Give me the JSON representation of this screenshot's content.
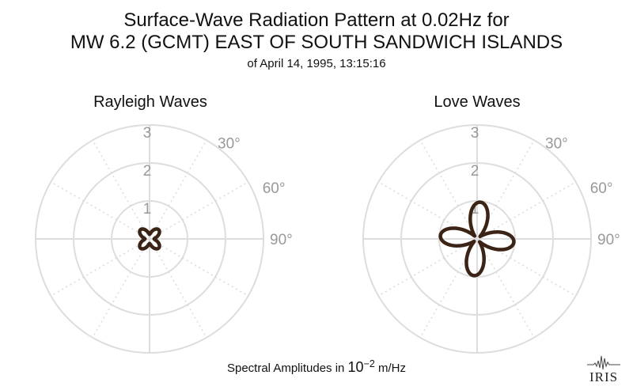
{
  "title_line1": "Surface-Wave Radiation Pattern at 0.02Hz for",
  "title_line2": "MW 6.2 (GCMT) EAST OF SOUTH SANDWICH ISLANDS",
  "subtitle": "of April 14, 1995, 13:15:16",
  "footer": {
    "prefix": "Spectral Amplitudes in ",
    "base": "10",
    "exponent": "−2",
    "unit": " m/Hz"
  },
  "logo_text": "IRIS",
  "colors": {
    "pattern": "#3b2416",
    "grid": "#dddddd",
    "label": "#999999"
  },
  "chart_data": [
    {
      "type": "polar-line",
      "title": "Rayleigh Waves",
      "radial_ticks": [
        "1",
        "2",
        "3"
      ],
      "rlim": [
        0,
        3
      ],
      "angle_labels": [
        "30°",
        "60°",
        "90°"
      ],
      "angle_unit": "degrees azimuth (clockwise from north)",
      "pattern": {
        "form": "four-lobed",
        "lobe_peak": 0.34,
        "lobe_azimuths": [
          45,
          135,
          225,
          315
        ],
        "trough": 0.12
      }
    },
    {
      "type": "polar-line",
      "title": "Love Waves",
      "radial_ticks": [
        "1",
        "2",
        "3"
      ],
      "rlim": [
        0,
        3
      ],
      "angle_labels": [
        "30°",
        "60°",
        "90°"
      ],
      "angle_unit": "degrees azimuth (clockwise from north)",
      "pattern": {
        "form": "four-lobed",
        "lobe_peak": 0.97,
        "lobe_azimuths": [
          5,
          95,
          185,
          275
        ],
        "trough": 0.1
      }
    }
  ]
}
